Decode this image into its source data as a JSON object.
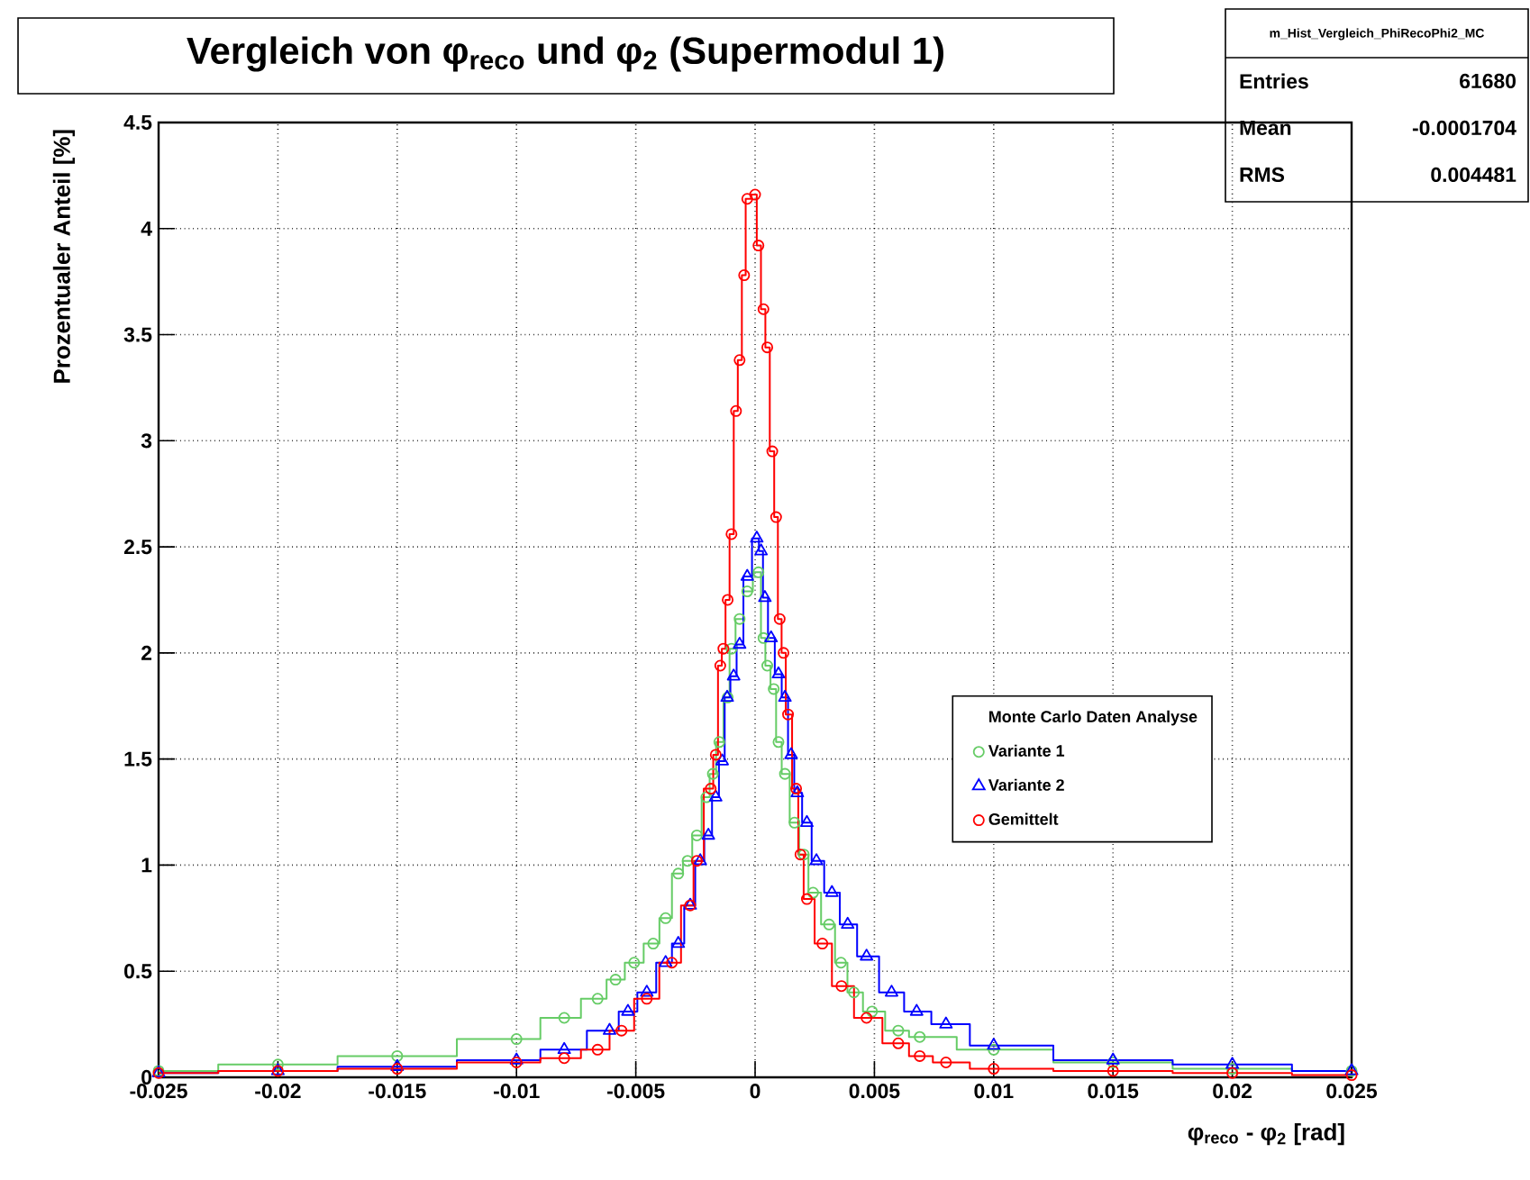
{
  "chart_data": {
    "type": "step",
    "title": "Vergleich von φ$_{reco}$ und φ$_{2}$ (Supermodul 1)",
    "xlabel": "φ$_{reco}$ - φ$_{2}$ [rad]",
    "ylabel": "Prozentualer Anteil [%]",
    "legend_title": "Monte Carlo Daten Analyse",
    "xlim": [
      -0.025,
      0.025
    ],
    "xticks": [
      -0.025,
      -0.02,
      -0.015,
      -0.01,
      -0.005,
      0,
      0.005,
      0.01,
      0.015,
      0.02,
      0.025
    ],
    "ylim": [
      0,
      4.5
    ],
    "yticks": [
      0,
      0.5,
      1,
      1.5,
      2,
      2.5,
      3,
      3.5,
      4,
      4.5
    ],
    "grid": true,
    "legend": "right",
    "series": [
      {
        "name": "Variante 1",
        "color": "#66cc66",
        "marker": "circle",
        "x": [
          -0.025,
          -0.02,
          -0.015,
          -0.01,
          -0.008,
          -0.0066,
          -0.00585,
          -0.00507,
          -0.00427,
          -0.00375,
          -0.00322,
          -0.00283,
          -0.00244,
          -0.00204,
          -0.00177,
          -0.0015,
          -0.00115,
          -0.00099,
          -0.00065,
          -0.00033,
          0.00014,
          0.00035,
          0.00051,
          0.00078,
          0.00098,
          0.00125,
          0.00165,
          0.00204,
          0.00243,
          0.0031,
          0.0036,
          0.00414,
          0.0049,
          0.006,
          0.0069,
          0.01,
          0.015,
          0.02,
          0.025
        ],
        "values": [
          0.03,
          0.06,
          0.1,
          0.18,
          0.28,
          0.37,
          0.46,
          0.54,
          0.63,
          0.75,
          0.96,
          1.02,
          1.14,
          1.32,
          1.43,
          1.58,
          1.79,
          2.02,
          2.16,
          2.29,
          2.38,
          2.07,
          1.94,
          1.83,
          1.58,
          1.43,
          1.2,
          1.05,
          0.87,
          0.72,
          0.54,
          0.4,
          0.31,
          0.22,
          0.19,
          0.13,
          0.07,
          0.04,
          0.03
        ]
      },
      {
        "name": "Variante 2",
        "color": "#0000ff",
        "marker": "triangle",
        "x": [
          -0.025,
          -0.02,
          -0.015,
          -0.01,
          -0.008,
          -0.0061,
          -0.00533,
          -0.00454,
          -0.00375,
          -0.00322,
          -0.00272,
          -0.0023,
          -0.00196,
          -0.00165,
          -0.00138,
          -0.00117,
          -0.0009,
          -0.00065,
          -0.00033,
          7e-05,
          0.00025,
          0.00041,
          0.00067,
          0.00098,
          0.00125,
          0.00151,
          0.00177,
          0.00217,
          0.00257,
          0.00322,
          0.00388,
          0.00467,
          0.00572,
          0.00677,
          0.008,
          0.01,
          0.015,
          0.02,
          0.025
        ],
        "values": [
          0.02,
          0.03,
          0.05,
          0.08,
          0.13,
          0.22,
          0.31,
          0.4,
          0.54,
          0.63,
          0.81,
          1.02,
          1.14,
          1.32,
          1.49,
          1.79,
          1.89,
          2.04,
          2.36,
          2.54,
          2.48,
          2.26,
          2.07,
          1.9,
          1.79,
          1.52,
          1.34,
          1.2,
          1.02,
          0.87,
          0.72,
          0.57,
          0.4,
          0.31,
          0.25,
          0.15,
          0.08,
          0.06,
          0.03
        ]
      },
      {
        "name": "Gemittelt",
        "color": "#ff0000",
        "marker": "circle",
        "x": [
          -0.025,
          -0.02,
          -0.015,
          -0.01,
          -0.008,
          -0.0066,
          -0.0056,
          -0.00454,
          -0.00349,
          -0.00272,
          -0.00244,
          -0.00186,
          -0.00165,
          -0.00146,
          -0.00133,
          -0.00115,
          -0.00099,
          -0.0008,
          -0.00065,
          -0.00046,
          -0.00033,
          0.0,
          0.00014,
          0.00035,
          0.00051,
          0.00072,
          0.00088,
          0.00103,
          0.00119,
          0.00138,
          0.00172,
          0.0019,
          0.00217,
          0.00282,
          0.00362,
          0.00467,
          0.006,
          0.0069,
          0.008,
          0.01,
          0.015,
          0.02,
          0.025
        ],
        "values": [
          0.02,
          0.03,
          0.04,
          0.07,
          0.09,
          0.13,
          0.22,
          0.37,
          0.54,
          0.81,
          1.02,
          1.36,
          1.52,
          1.94,
          2.02,
          2.25,
          2.56,
          3.14,
          3.38,
          3.78,
          4.14,
          4.16,
          3.92,
          3.62,
          3.44,
          2.95,
          2.64,
          2.16,
          2.0,
          1.71,
          1.36,
          1.05,
          0.84,
          0.63,
          0.43,
          0.28,
          0.16,
          0.1,
          0.07,
          0.04,
          0.03,
          0.02,
          0.01
        ]
      }
    ],
    "annotations": [
      "m_Hist_Vergleich_PhiRecoPhi2_MC",
      "Entries",
      "61680",
      "Mean",
      "-0.0001704",
      "RMS",
      "0.004481"
    ]
  }
}
